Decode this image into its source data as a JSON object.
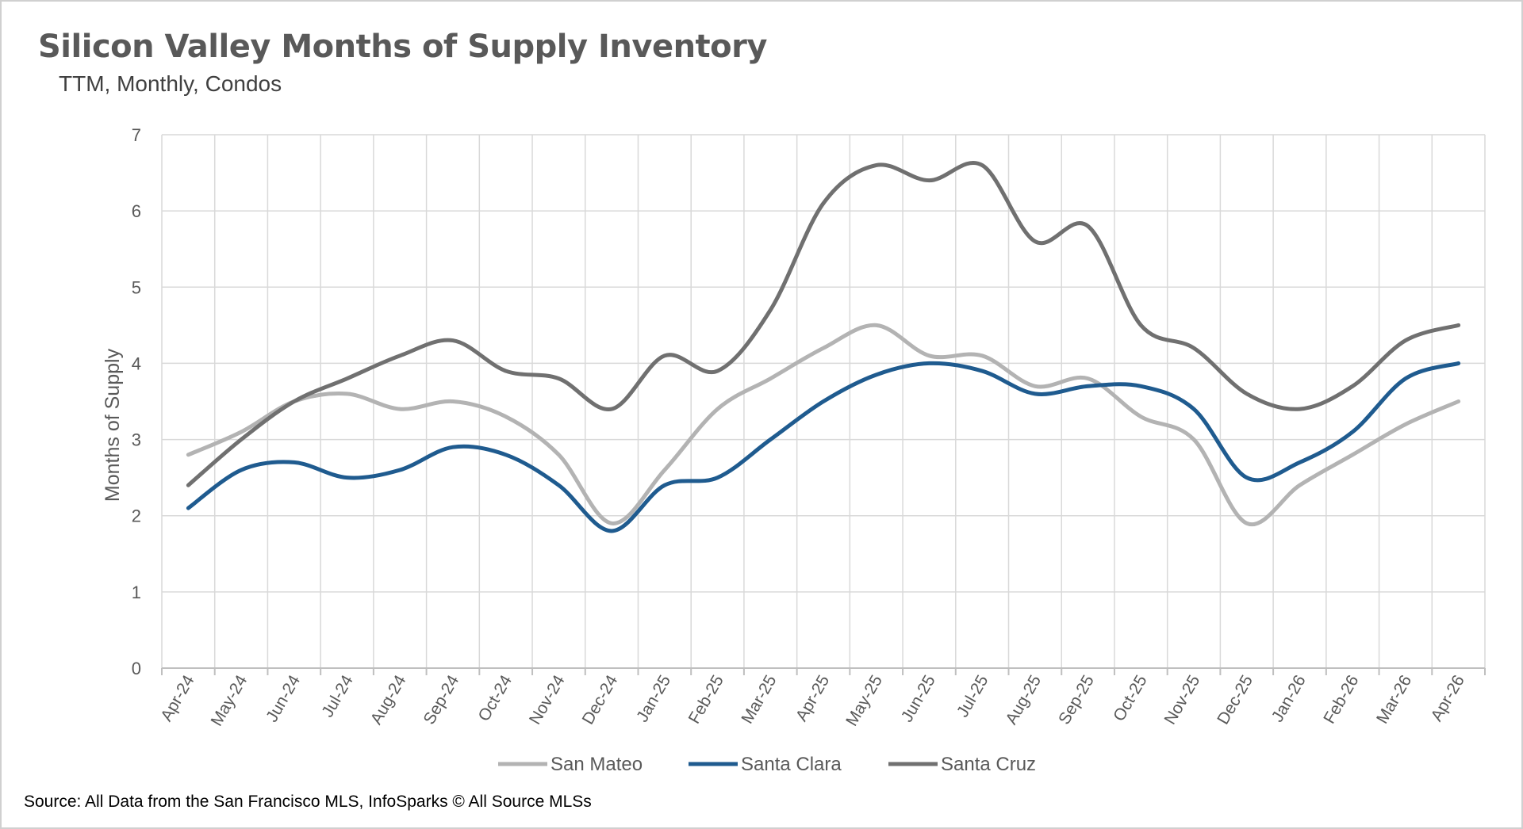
{
  "chart_data": {
    "type": "line",
    "title": "Silicon Valley Months of Supply Inventory",
    "subtitle": "TTM, Monthly, Condos",
    "ylabel": "Months of Supply",
    "xlabel": "",
    "ylim": [
      0,
      7
    ],
    "yticks": [
      0,
      1,
      2,
      3,
      4,
      5,
      6,
      7
    ],
    "grid": true,
    "legend": "bottom",
    "categories": [
      "Apr-24",
      "May-24",
      "Jun-24",
      "Jul-24",
      "Aug-24",
      "Sep-24",
      "Oct-24",
      "Nov-24",
      "Dec-24",
      "Jan-25",
      "Feb-25",
      "Mar-25",
      "Apr-25",
      "May-25",
      "Jun-25",
      "Jul-25",
      "Aug-25",
      "Sep-25",
      "Oct-25",
      "Nov-25",
      "Dec-25",
      "Jan-26",
      "Feb-26",
      "Mar-26",
      "Apr-26"
    ],
    "series": [
      {
        "name": "San Mateo",
        "color": "#b3b3b3",
        "values": [
          2.8,
          3.1,
          3.5,
          3.6,
          3.4,
          3.5,
          3.3,
          2.8,
          1.9,
          2.6,
          3.4,
          3.8,
          4.2,
          4.5,
          4.1,
          4.1,
          3.7,
          3.8,
          3.3,
          3.0,
          1.9,
          2.4,
          2.8,
          3.2,
          3.5
        ]
      },
      {
        "name": "Santa Clara",
        "color": "#1f5b8f",
        "values": [
          2.1,
          2.6,
          2.7,
          2.5,
          2.6,
          2.9,
          2.8,
          2.4,
          1.8,
          2.4,
          2.5,
          3.0,
          3.5,
          3.85,
          4.0,
          3.9,
          3.6,
          3.7,
          3.7,
          3.4,
          2.5,
          2.7,
          3.1,
          3.8,
          4.0
        ]
      },
      {
        "name": "Santa Cruz",
        "color": "#707070",
        "values": [
          2.4,
          3.0,
          3.5,
          3.8,
          4.1,
          4.3,
          3.9,
          3.8,
          3.4,
          4.1,
          3.9,
          4.7,
          6.1,
          6.6,
          6.4,
          6.6,
          5.6,
          5.8,
          4.5,
          4.2,
          3.6,
          3.4,
          3.7,
          4.3,
          4.5
        ]
      }
    ]
  },
  "footer": {
    "source": "Source: All Data from the San Francisco MLS, InfoSparks © All Source MLSs"
  }
}
